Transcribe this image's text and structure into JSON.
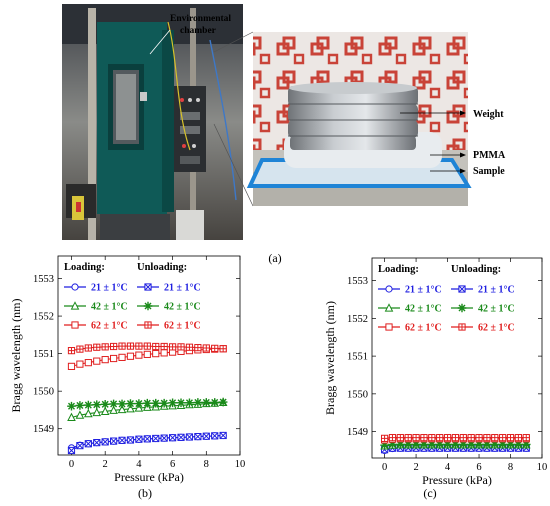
{
  "panel_labels": {
    "a": "(a)",
    "b": "(b)",
    "c": "(c)"
  },
  "photo": {
    "labels": {
      "chamber": [
        "Environmental",
        "chamber"
      ],
      "weight": "Weight",
      "pmma": "PMMA",
      "sample": "Sample"
    }
  },
  "legend": {
    "loading_title": "Loading:",
    "unloading_title": "Unloading:",
    "entries": [
      "21 ± 1°C",
      "42 ± 1°C",
      "62 ± 1°C"
    ]
  },
  "colors": {
    "t21": "#1f1fe0",
    "t42": "#1a8a1a",
    "t62": "#e01f1f"
  },
  "chart_data": [
    {
      "type": "line",
      "panel": "(b)",
      "xlabel": "Pressure (kPa)",
      "ylabel": "Bragg wavelength (nm)",
      "xlim": [
        -0.8,
        10
      ],
      "ylim": [
        1548.3,
        1553.6
      ],
      "xticks": [
        "0",
        "2",
        "4",
        "6",
        "8",
        "10"
      ],
      "yticks": [
        "1549",
        "1550",
        "1551",
        "1552",
        "1553"
      ],
      "x": [
        0,
        0.5,
        1,
        1.5,
        2,
        2.5,
        3,
        3.5,
        4,
        4.5,
        5,
        5.5,
        6,
        6.5,
        7,
        7.5,
        8,
        8.5,
        9
      ],
      "series": [
        {
          "name": "Loading 21 ± 1°C",
          "marker": "circle",
          "color": "t21",
          "values": [
            1548.49,
            1548.56,
            1548.6,
            1548.63,
            1548.65,
            1548.67,
            1548.69,
            1548.7,
            1548.72,
            1548.73,
            1548.74,
            1548.75,
            1548.76,
            1548.77,
            1548.78,
            1548.79,
            1548.8,
            1548.81,
            1548.82
          ]
        },
        {
          "name": "Unloading 21 ± 1°C",
          "marker": "xbox",
          "color": "t21",
          "values": [
            1548.42,
            1548.55,
            1548.6,
            1548.63,
            1548.65,
            1548.67,
            1548.69,
            1548.7,
            1548.72,
            1548.73,
            1548.74,
            1548.75,
            1548.76,
            1548.77,
            1548.78,
            1548.79,
            1548.8,
            1548.81,
            1548.82
          ]
        },
        {
          "name": "Loading 42 ± 1°C",
          "marker": "triangle",
          "color": "t42",
          "values": [
            1549.3,
            1549.36,
            1549.4,
            1549.43,
            1549.46,
            1549.49,
            1549.51,
            1549.53,
            1549.55,
            1549.57,
            1549.58,
            1549.6,
            1549.61,
            1549.62,
            1549.64,
            1549.65,
            1549.67,
            1549.68,
            1549.7
          ]
        },
        {
          "name": "Unloading 42 ± 1°C",
          "marker": "star",
          "color": "t42",
          "values": [
            1549.6,
            1549.62,
            1549.63,
            1549.64,
            1549.65,
            1549.66,
            1549.66,
            1549.67,
            1549.67,
            1549.68,
            1549.68,
            1549.68,
            1549.69,
            1549.69,
            1549.69,
            1549.7,
            1549.7,
            1549.7,
            1549.71
          ]
        },
        {
          "name": "Loading 62 ± 1°C",
          "marker": "square",
          "color": "t62",
          "values": [
            1550.66,
            1550.72,
            1550.76,
            1550.8,
            1550.84,
            1550.87,
            1550.9,
            1550.93,
            1550.96,
            1550.98,
            1551.0,
            1551.02,
            1551.04,
            1551.06,
            1551.08,
            1551.1,
            1551.11,
            1551.12,
            1551.13
          ]
        },
        {
          "name": "Unloading 62 ± 1°C",
          "marker": "sqcross",
          "color": "t62",
          "values": [
            1551.08,
            1551.12,
            1551.15,
            1551.17,
            1551.18,
            1551.19,
            1551.2,
            1551.2,
            1551.2,
            1551.2,
            1551.19,
            1551.19,
            1551.18,
            1551.18,
            1551.17,
            1551.16,
            1551.15,
            1551.14,
            1551.13
          ]
        }
      ]
    },
    {
      "type": "line",
      "panel": "(c)",
      "xlabel": "Pressure (kPa)",
      "ylabel": "Bragg wavelength (nm)",
      "xlim": [
        -0.8,
        10
      ],
      "ylim": [
        1548.3,
        1553.6
      ],
      "xticks": [
        "0",
        "2",
        "4",
        "6",
        "8",
        "10"
      ],
      "yticks": [
        "1549",
        "1550",
        "1551",
        "1552",
        "1553"
      ],
      "x": [
        0,
        0.5,
        1,
        1.5,
        2,
        2.5,
        3,
        3.5,
        4,
        4.5,
        5,
        5.5,
        6,
        6.5,
        7,
        7.5,
        8,
        8.5,
        9
      ],
      "series": [
        {
          "name": "Loading 21 ± 1°C",
          "marker": "circle",
          "color": "t21",
          "values": [
            1548.5,
            1548.55,
            1548.56,
            1548.56,
            1548.56,
            1548.56,
            1548.56,
            1548.56,
            1548.56,
            1548.56,
            1548.56,
            1548.56,
            1548.56,
            1548.56,
            1548.56,
            1548.56,
            1548.56,
            1548.56,
            1548.56
          ]
        },
        {
          "name": "Unloading 21 ± 1°C",
          "marker": "xbox",
          "color": "t21",
          "values": [
            1548.52,
            1548.56,
            1548.56,
            1548.56,
            1548.56,
            1548.56,
            1548.56,
            1548.56,
            1548.56,
            1548.56,
            1548.56,
            1548.56,
            1548.56,
            1548.56,
            1548.56,
            1548.56,
            1548.56,
            1548.56,
            1548.56
          ]
        },
        {
          "name": "Loading 42 ± 1°C",
          "marker": "triangle",
          "color": "t42",
          "values": [
            1548.62,
            1548.64,
            1548.65,
            1548.65,
            1548.65,
            1548.65,
            1548.65,
            1548.65,
            1548.65,
            1548.65,
            1548.65,
            1548.65,
            1548.65,
            1548.65,
            1548.65,
            1548.65,
            1548.65,
            1548.65,
            1548.65
          ]
        },
        {
          "name": "Unloading 42 ± 1°C",
          "marker": "star",
          "color": "t42",
          "values": [
            1548.64,
            1548.66,
            1548.66,
            1548.66,
            1548.66,
            1548.66,
            1548.66,
            1548.66,
            1548.66,
            1548.66,
            1548.66,
            1548.66,
            1548.66,
            1548.66,
            1548.66,
            1548.66,
            1548.66,
            1548.66,
            1548.66
          ]
        },
        {
          "name": "Loading 62 ± 1°C",
          "marker": "square",
          "color": "t62",
          "values": [
            1548.78,
            1548.8,
            1548.81,
            1548.81,
            1548.81,
            1548.81,
            1548.81,
            1548.81,
            1548.81,
            1548.81,
            1548.81,
            1548.81,
            1548.81,
            1548.81,
            1548.81,
            1548.81,
            1548.81,
            1548.81,
            1548.81
          ]
        },
        {
          "name": "Unloading 62 ± 1°C",
          "marker": "sqcross",
          "color": "t62",
          "values": [
            1548.82,
            1548.84,
            1548.84,
            1548.84,
            1548.84,
            1548.84,
            1548.84,
            1548.84,
            1548.84,
            1548.84,
            1548.84,
            1548.84,
            1548.84,
            1548.84,
            1548.84,
            1548.84,
            1548.84,
            1548.84,
            1548.84
          ]
        }
      ]
    }
  ]
}
